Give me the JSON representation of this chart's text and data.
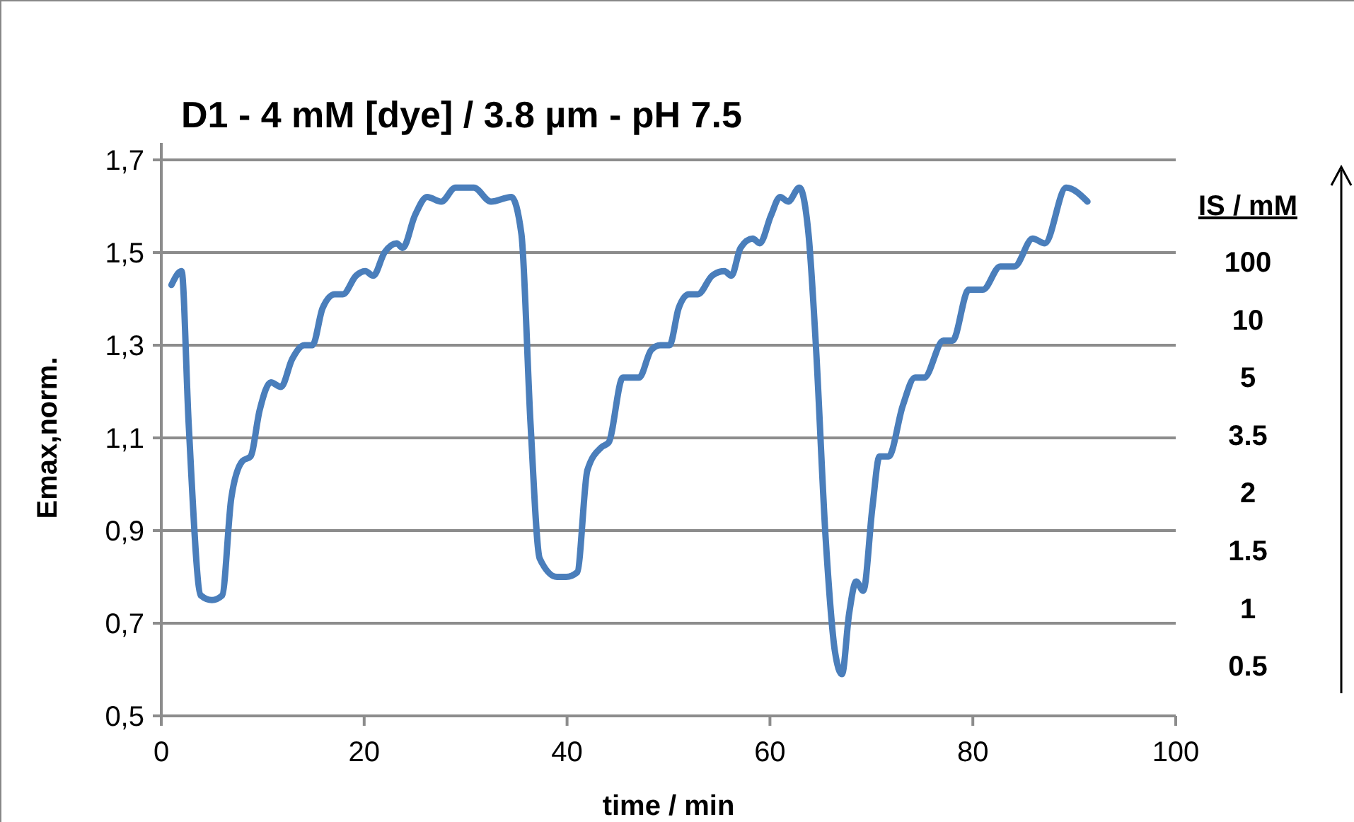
{
  "chart_data": {
    "type": "line",
    "title": "D1 - 4 mM [dye] / 3.8 µm - pH 7.5",
    "xlabel": "time / min",
    "ylabel": "Emax,norm.",
    "xlim": [
      0,
      100
    ],
    "xticks": [
      0,
      20,
      40,
      60,
      80,
      100
    ],
    "ylim": [
      0.5,
      1.7
    ],
    "yticks": [
      {
        "value": 0.5,
        "label": "0,5"
      },
      {
        "value": 0.7,
        "label": "0,7"
      },
      {
        "value": 0.9,
        "label": "0,9"
      },
      {
        "value": 1.1,
        "label": "1,1"
      },
      {
        "value": 1.3,
        "label": "1,3"
      },
      {
        "value": 1.5,
        "label": "1,5"
      },
      {
        "value": 1.7,
        "label": "1,7"
      }
    ],
    "grid": "y",
    "marker": "none",
    "line_style": "solid",
    "annotations": [
      "IS / mM",
      "100",
      "10",
      "5",
      "3.5",
      "2",
      "1.5",
      "1",
      "0.5"
    ],
    "series": [
      {
        "color": "#4a7ebb",
        "x": [
          1,
          2,
          2.7,
          3.9,
          5,
          6,
          6.9,
          8,
          8.8,
          9.7,
          10.8,
          11.8,
          12.9,
          14.1,
          14.9,
          15.9,
          17.1,
          17.9,
          19.2,
          20.1,
          20.9,
          22,
          23.2,
          23.8,
          25,
          26.2,
          27.6,
          29,
          30.8,
          32.5,
          34.5,
          35.5,
          36.4,
          37.3,
          39,
          39.9,
          41,
          42,
          43.4,
          44.1,
          45.5,
          46.4,
          47.1,
          48.3,
          49.2,
          50.1,
          51,
          52,
          52.9,
          54.3,
          55.5,
          56.2,
          57.1,
          58.3,
          59,
          60.1,
          61,
          61.8,
          62.9,
          63.8,
          64.5,
          65.5,
          66.4,
          67.1,
          67.8,
          68.5,
          69.2,
          70.1,
          70.8,
          71.7,
          73.1,
          74.3,
          75.2,
          77.1,
          78,
          79.6,
          81,
          82.7,
          84.1,
          85.9,
          87.1,
          89.2,
          91.3
        ],
        "values": [
          1.43,
          1.46,
          1.13,
          0.76,
          0.75,
          0.76,
          0.97,
          1.05,
          1.06,
          1.16,
          1.22,
          1.21,
          1.27,
          1.3,
          1.3,
          1.38,
          1.41,
          1.41,
          1.45,
          1.46,
          1.45,
          1.5,
          1.52,
          1.51,
          1.58,
          1.62,
          1.61,
          1.64,
          1.64,
          1.61,
          1.62,
          1.54,
          1.13,
          0.84,
          0.8,
          0.8,
          0.81,
          1.03,
          1.08,
          1.09,
          1.23,
          1.23,
          1.23,
          1.29,
          1.3,
          1.3,
          1.38,
          1.41,
          1.41,
          1.45,
          1.46,
          1.45,
          1.51,
          1.53,
          1.52,
          1.58,
          1.62,
          1.61,
          1.64,
          1.54,
          1.31,
          0.88,
          0.64,
          0.59,
          0.72,
          0.79,
          0.77,
          0.95,
          1.06,
          1.06,
          1.17,
          1.23,
          1.23,
          1.31,
          1.31,
          1.42,
          1.42,
          1.47,
          1.47,
          1.53,
          1.52,
          1.64,
          1.61
        ]
      }
    ]
  }
}
